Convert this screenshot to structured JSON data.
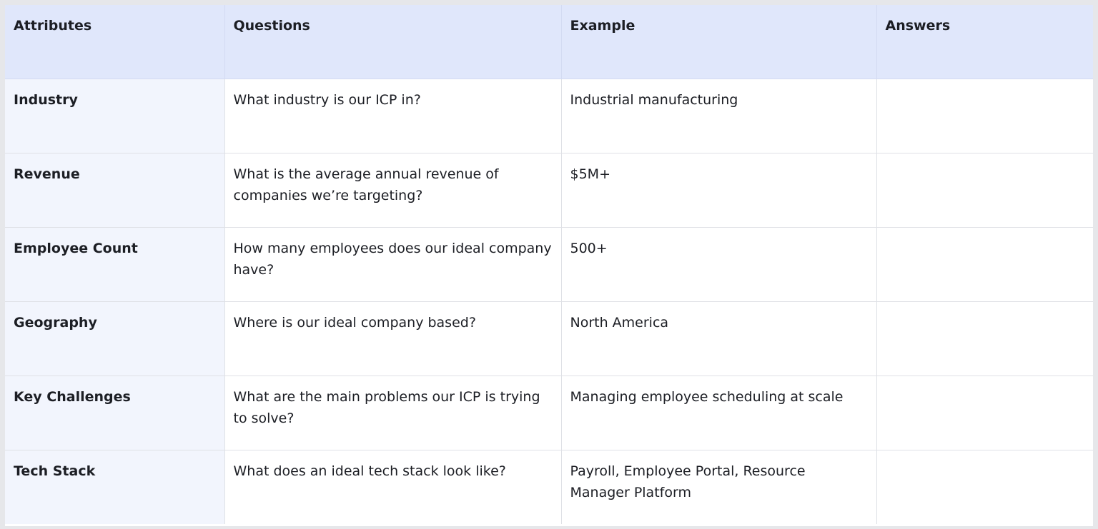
{
  "table": {
    "headers": [
      "Attributes",
      "Questions",
      "Example",
      "Answers"
    ],
    "rows": [
      {
        "attribute": "Industry",
        "question": "What industry is our ICP in?",
        "example": "Industrial manufacturing",
        "answer": ""
      },
      {
        "attribute": "Revenue",
        "question": "What is the average annual revenue of companies we’re targeting?",
        "example": "$5M+",
        "answer": ""
      },
      {
        "attribute": "Employee Count",
        "question": "How many employees does our ideal company have?",
        "example": "500+",
        "answer": ""
      },
      {
        "attribute": "Geography",
        "question": "Where is our ideal company based?",
        "example": "North America",
        "answer": ""
      },
      {
        "attribute": "Key Challenges",
        "question": "What are the main problems our ICP is trying to solve?",
        "example": "Managing employee scheduling at scale",
        "answer": ""
      },
      {
        "attribute": "Tech Stack",
        "question": "What does an ideal tech stack look like?",
        "example": "Payroll, Employee Portal, Resource Manager Platform",
        "answer": ""
      }
    ]
  },
  "colors": {
    "header_bg": "#e0e7fb",
    "attribute_col_bg": "#f2f5fd",
    "frame_bg": "#e6e7ea",
    "grid_line": "#dfe1e6"
  }
}
